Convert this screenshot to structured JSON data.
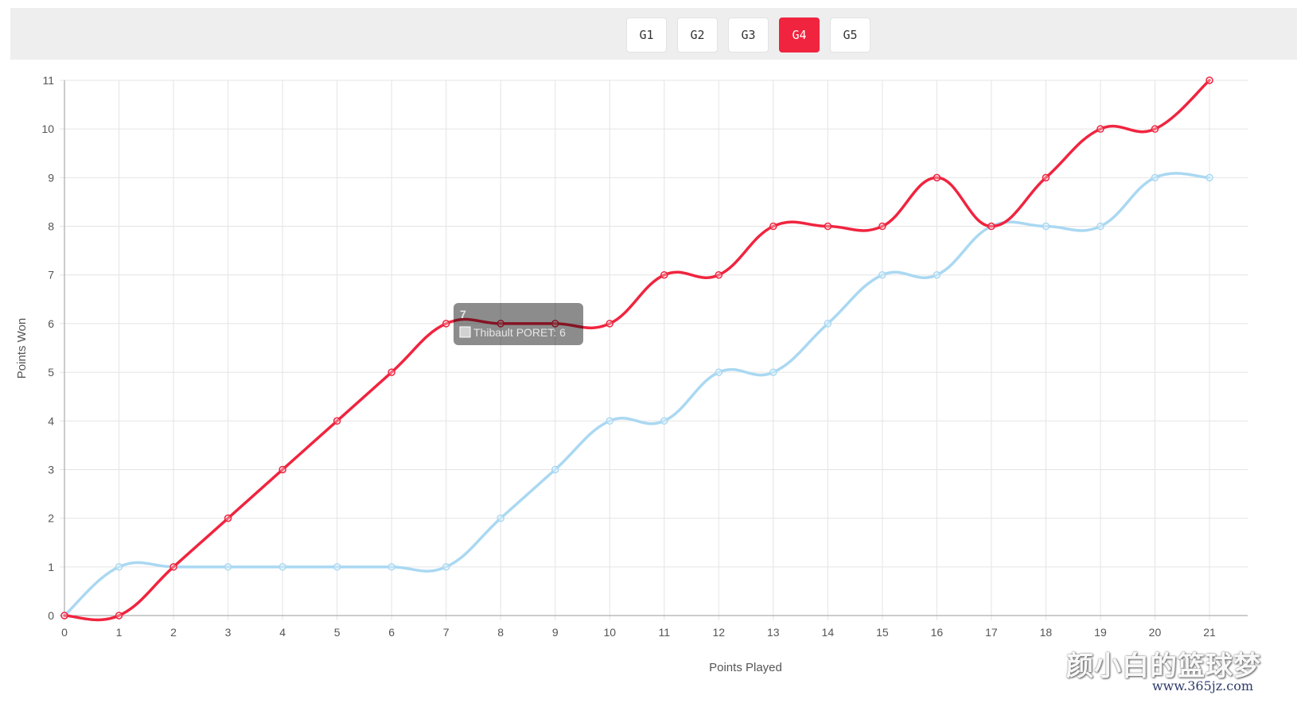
{
  "game_tabs": [
    {
      "label": "G1",
      "active": false
    },
    {
      "label": "G2",
      "active": false
    },
    {
      "label": "G3",
      "active": false
    },
    {
      "label": "G4",
      "active": true
    },
    {
      "label": "G5",
      "active": false
    }
  ],
  "colors": {
    "active_tab": "#f0243f",
    "series_red": "#f0243f",
    "series_blue": "#aad8f2",
    "grid": "#e4e4e4",
    "tooltip_bg": "rgba(0,0,0,0.45)"
  },
  "tooltip": {
    "title": "7",
    "label": "Thibault PORET: 6",
    "swatch_color": "#f0243f"
  },
  "watermark": {
    "main": "颜小白的篮球梦",
    "sub": "www.365jz.com"
  },
  "chart_data": {
    "type": "line",
    "xlabel": "Points Played",
    "ylabel": "Points Won",
    "x": [
      0,
      1,
      2,
      3,
      4,
      5,
      6,
      7,
      8,
      9,
      10,
      11,
      12,
      13,
      14,
      15,
      16,
      17,
      18,
      19,
      20,
      21
    ],
    "xlim": [
      0,
      21
    ],
    "ylim": [
      0,
      11
    ],
    "x_ticks": [
      "0",
      "1",
      "2",
      "3",
      "4",
      "5",
      "6",
      "7",
      "8",
      "9",
      "10",
      "11",
      "12",
      "13",
      "14",
      "15",
      "16",
      "17",
      "18",
      "19",
      "20",
      "21"
    ],
    "y_ticks": [
      "0",
      "1",
      "2",
      "3",
      "4",
      "5",
      "6",
      "7",
      "8",
      "9",
      "10",
      "11"
    ],
    "grid": true,
    "series": [
      {
        "color": "#aad8f2",
        "values": [
          0,
          1,
          1,
          1,
          1,
          1,
          1,
          1,
          2,
          3,
          4,
          4,
          5,
          5,
          6,
          7,
          7,
          8,
          8,
          8,
          9,
          9
        ]
      },
      {
        "name": "Thibault PORET",
        "color": "#f0243f",
        "values": [
          0,
          0,
          1,
          2,
          3,
          4,
          5,
          6,
          6,
          6,
          6,
          7,
          7,
          8,
          8,
          8,
          9,
          8,
          9,
          10,
          10,
          11
        ]
      }
    ]
  }
}
